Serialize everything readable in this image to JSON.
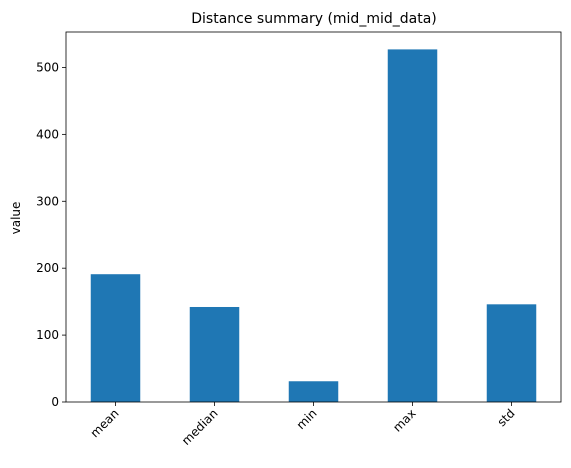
{
  "chart_data": {
    "type": "bar",
    "title": "Distance summary (mid_mid_data)",
    "xlabel": "",
    "ylabel": "value",
    "categories": [
      "mean",
      "median",
      "min",
      "max",
      "std"
    ],
    "values": [
      191,
      142,
      31,
      527,
      146
    ],
    "ylim": [
      0,
      553
    ],
    "yticks": [
      0,
      100,
      200,
      300,
      400,
      500
    ],
    "grid": false,
    "bar_color": "#1f77b4",
    "x_tick_rotation_deg": 45
  }
}
